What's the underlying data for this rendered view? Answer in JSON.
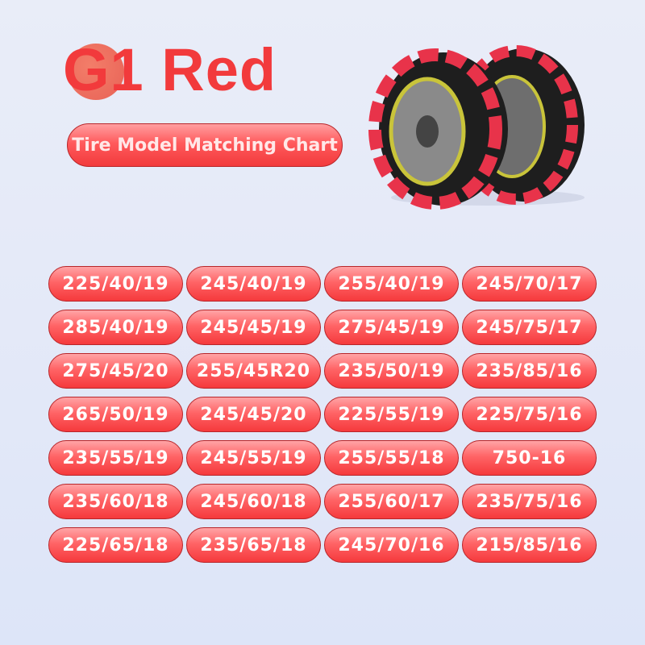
{
  "header": {
    "title": "G1 Red",
    "subtitle": "Tire Model Matching Chart"
  },
  "colors": {
    "accent": "#f23a3c",
    "background": "#e6ebf8"
  },
  "product_image": "red snow chains on two tires",
  "tire_sizes": [
    "225/40/19",
    "245/40/19",
    "255/40/19",
    "245/70/17",
    "285/40/19",
    "245/45/19",
    "275/45/19",
    "245/75/17",
    "275/45/20",
    "255/45R20",
    "235/50/19",
    "235/85/16",
    "265/50/19",
    "245/45/20",
    "225/55/19",
    "225/75/16",
    "235/55/19",
    "245/55/19",
    "255/55/18",
    "750-16",
    "235/60/18",
    "245/60/18",
    "255/60/17",
    "235/75/16",
    "225/65/18",
    "235/65/18",
    "245/70/16",
    "215/85/16"
  ]
}
